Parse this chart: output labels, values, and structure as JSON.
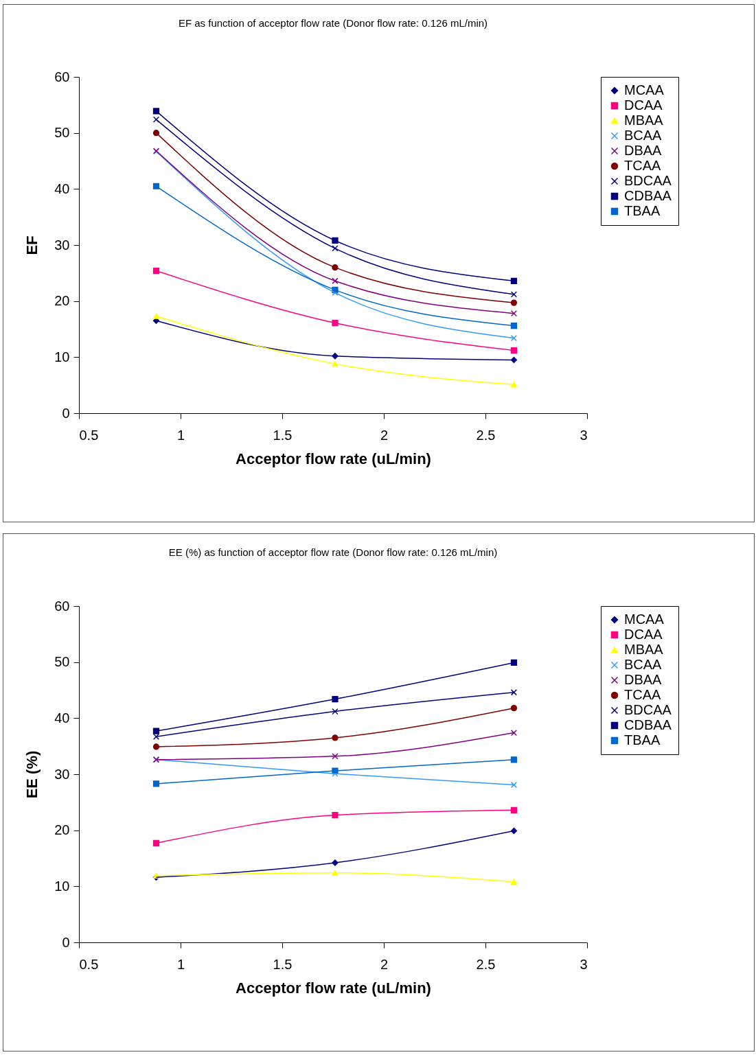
{
  "chart_data": [
    {
      "type": "line",
      "title": "EF as function of acceptor flow rate (Donor flow rate: 0.126 mL/min)",
      "xlabel": "Acceptor flow rate (uL/min)",
      "ylabel": "EF",
      "x": [
        0.88,
        1.76,
        2.64
      ],
      "xlim": [
        0.5,
        3
      ],
      "xticks": [
        0.5,
        1,
        1.5,
        2,
        2.5,
        3
      ],
      "ylim": [
        0,
        60
      ],
      "yticks": [
        0,
        10,
        20,
        30,
        40,
        50,
        60
      ],
      "grid": false,
      "legend": "right",
      "line_style": "solid",
      "series": [
        {
          "name": "MCAA",
          "color": "#000080",
          "marker": "diamond",
          "values": [
            16.5,
            10.2,
            9.5
          ]
        },
        {
          "name": "DCAA",
          "color": "#ff0080",
          "marker": "square",
          "values": [
            25.4,
            16.1,
            11.2
          ]
        },
        {
          "name": "MBAA",
          "color": "#ffff00",
          "marker": "triangle",
          "values": [
            17.3,
            8.8,
            5.1
          ]
        },
        {
          "name": "BCAA",
          "color": "#3399ff",
          "marker": "cross",
          "values": [
            46.7,
            21.5,
            13.4
          ]
        },
        {
          "name": "DBAA",
          "color": "#800080",
          "marker": "cross",
          "values": [
            46.8,
            23.6,
            17.8
          ]
        },
        {
          "name": "TCAA",
          "color": "#800000",
          "marker": "circle",
          "values": [
            50.0,
            26.0,
            19.7
          ]
        },
        {
          "name": "BDCAA",
          "color": "#000080",
          "marker": "cross",
          "values": [
            52.4,
            29.4,
            21.2
          ]
        },
        {
          "name": "CDBAA",
          "color": "#000080",
          "marker": "square",
          "values": [
            53.9,
            30.8,
            23.6
          ]
        },
        {
          "name": "TBAA",
          "color": "#0066cc",
          "marker": "square",
          "values": [
            40.5,
            22.0,
            15.6
          ]
        }
      ]
    },
    {
      "type": "line",
      "title": "EE (%) as function of acceptor flow rate (Donor flow rate: 0.126 mL/min)",
      "xlabel": "Acceptor flow rate (uL/min)",
      "ylabel": "EE (%)",
      "x": [
        0.88,
        1.76,
        2.64
      ],
      "xlim": [
        0.5,
        3
      ],
      "xticks": [
        0.5,
        1,
        1.5,
        2,
        2.5,
        3
      ],
      "ylim": [
        0,
        60
      ],
      "yticks": [
        0,
        10,
        20,
        30,
        40,
        50,
        60
      ],
      "grid": false,
      "legend": "right",
      "line_style": "solid",
      "series": [
        {
          "name": "MCAA",
          "color": "#000080",
          "marker": "diamond",
          "values": [
            11.6,
            14.2,
            19.9
          ]
        },
        {
          "name": "DCAA",
          "color": "#ff0080",
          "marker": "square",
          "values": [
            17.7,
            22.7,
            23.6
          ]
        },
        {
          "name": "MBAA",
          "color": "#ffff00",
          "marker": "triangle",
          "values": [
            11.9,
            12.4,
            10.8
          ]
        },
        {
          "name": "BCAA",
          "color": "#3399ff",
          "marker": "cross",
          "values": [
            32.6,
            30.1,
            28.1
          ]
        },
        {
          "name": "DBAA",
          "color": "#800080",
          "marker": "cross",
          "values": [
            32.6,
            33.2,
            37.4
          ]
        },
        {
          "name": "TCAA",
          "color": "#800000",
          "marker": "circle",
          "values": [
            34.9,
            36.5,
            41.8
          ]
        },
        {
          "name": "BDCAA",
          "color": "#000080",
          "marker": "cross",
          "values": [
            36.7,
            41.2,
            44.6
          ]
        },
        {
          "name": "CDBAA",
          "color": "#000080",
          "marker": "square",
          "values": [
            37.7,
            43.4,
            49.9
          ]
        },
        {
          "name": "TBAA",
          "color": "#0066cc",
          "marker": "square",
          "values": [
            28.3,
            30.6,
            32.6
          ]
        }
      ]
    }
  ]
}
